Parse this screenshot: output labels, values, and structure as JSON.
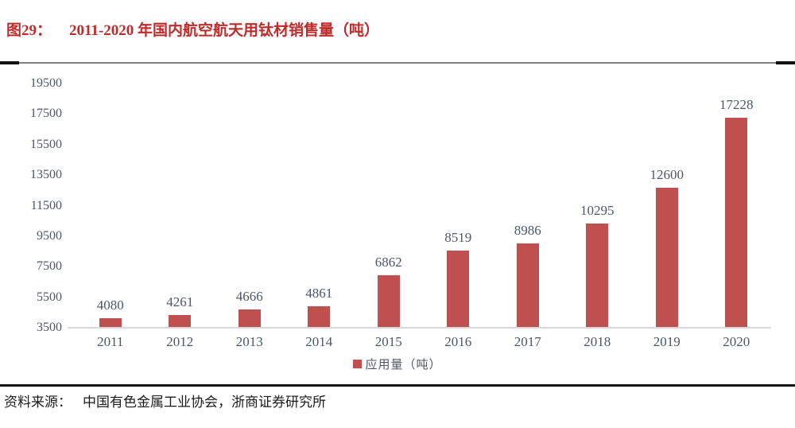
{
  "header": {
    "figure_label": "图29：",
    "title": "2011-2020 年国内航空航天用钛材销售量（吨）",
    "accent_color": "#be2b2b"
  },
  "chart_data": {
    "type": "bar",
    "title": "2011-2020 年国内航空航天用钛材销售量（吨）",
    "categories": [
      "2011",
      "2012",
      "2013",
      "2014",
      "2015",
      "2016",
      "2017",
      "2018",
      "2019",
      "2020"
    ],
    "values": [
      4080,
      4261,
      4666,
      4861,
      6862,
      8519,
      8986,
      10295,
      12600,
      17228
    ],
    "series_name": "应用量（吨）",
    "xlabel": "",
    "ylabel": "",
    "ylim": [
      3500,
      19500
    ],
    "yticks": [
      3500,
      5500,
      7500,
      9500,
      11500,
      13500,
      15500,
      17500,
      19500
    ],
    "grid": false,
    "data_labels": true,
    "legend_position": "bottom",
    "bar_color": "#c0504d",
    "axis_line_color": "#d9d9d9",
    "tick_label_color": "#4e5768"
  },
  "legend": {
    "label": "应用量（吨）",
    "swatch_color": "#c0504d"
  },
  "footer": {
    "source_label": "资料来源：",
    "source_text": "中国有色金属工业协会，浙商证券研究所"
  }
}
